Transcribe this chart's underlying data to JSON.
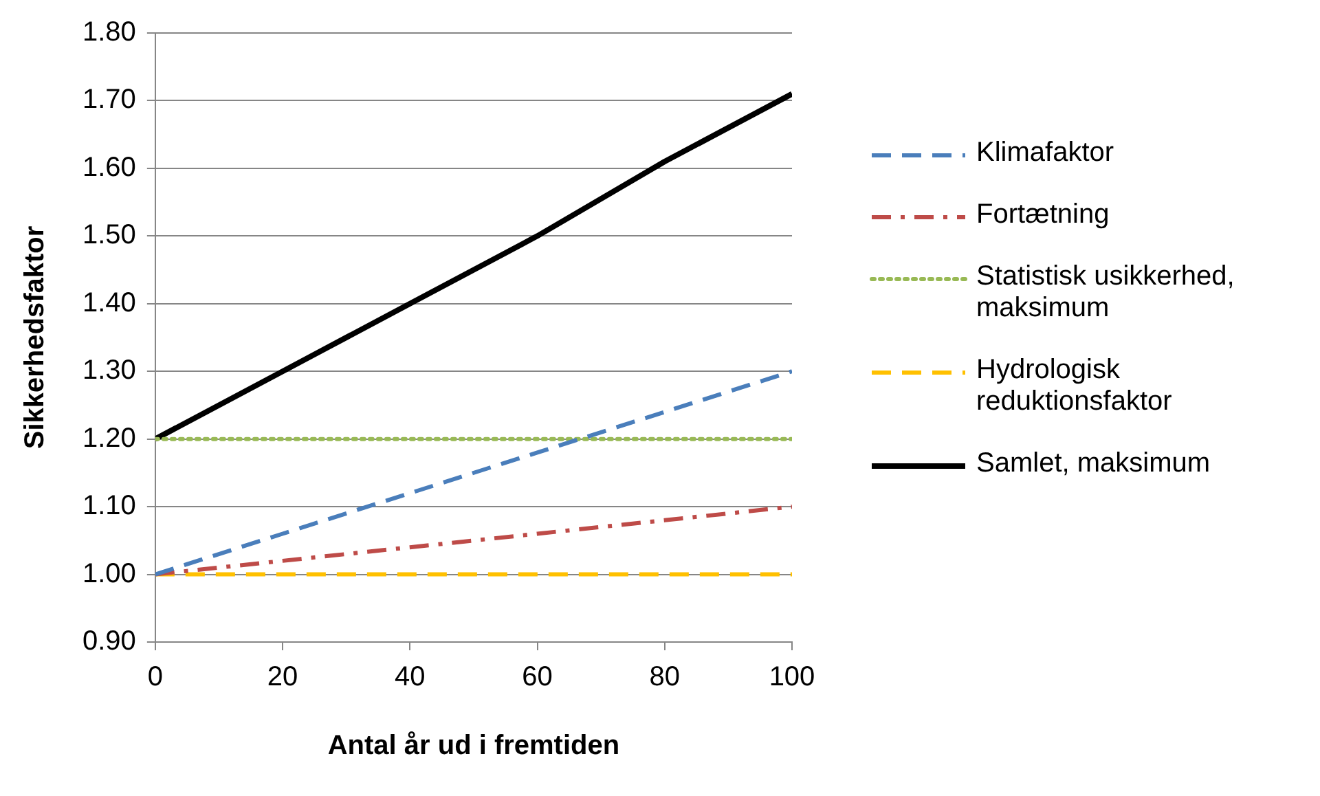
{
  "chart_data": {
    "type": "line",
    "xlabel": "Antal år ud i fremtiden",
    "ylabel": "Sikkerhedsfaktor",
    "x": [
      0,
      20,
      40,
      60,
      80,
      100
    ],
    "xlim": [
      0,
      100
    ],
    "xticks": [
      0,
      20,
      40,
      60,
      80,
      100
    ],
    "ylim": [
      0.9,
      1.8
    ],
    "yticks": [
      {
        "value": 0.9,
        "label": "0.90"
      },
      {
        "value": 1.0,
        "label": "1.00"
      },
      {
        "value": 1.1,
        "label": "1.10"
      },
      {
        "value": 1.2,
        "label": "1.20"
      },
      {
        "value": 1.3,
        "label": "1.30"
      },
      {
        "value": 1.4,
        "label": "1.40"
      },
      {
        "value": 1.5,
        "label": "1.50"
      },
      {
        "value": 1.6,
        "label": "1.60"
      },
      {
        "value": 1.7,
        "label": "1.70"
      },
      {
        "value": 1.8,
        "label": "1.80"
      }
    ],
    "grid": "y",
    "legend": "right",
    "marker": "none",
    "series": [
      {
        "name": "Klimafaktor",
        "color": "#4a7ebb",
        "line_style": "dashed",
        "values": [
          1.0,
          1.06,
          1.12,
          1.18,
          1.24,
          1.3
        ]
      },
      {
        "name": "Fortætning",
        "color": "#be4b48",
        "line_style": "dashdot",
        "values": [
          1.0,
          1.02,
          1.04,
          1.06,
          1.08,
          1.1
        ]
      },
      {
        "name": "Statistisk usikkerhed, maksimum",
        "color": "#98b954",
        "line_style": "dotted",
        "values": [
          1.2,
          1.2,
          1.2,
          1.2,
          1.2,
          1.2
        ]
      },
      {
        "name": "Hydrologisk reduktionsfaktor",
        "color": "#ffc000",
        "line_style": "dashed",
        "values": [
          1.0,
          1.0,
          1.0,
          1.0,
          1.0,
          1.0
        ]
      },
      {
        "name": "Samlet, maksimum",
        "color": "#000000",
        "line_style": "solid",
        "values": [
          1.2,
          1.3,
          1.4,
          1.5,
          1.61,
          1.71
        ]
      }
    ]
  }
}
